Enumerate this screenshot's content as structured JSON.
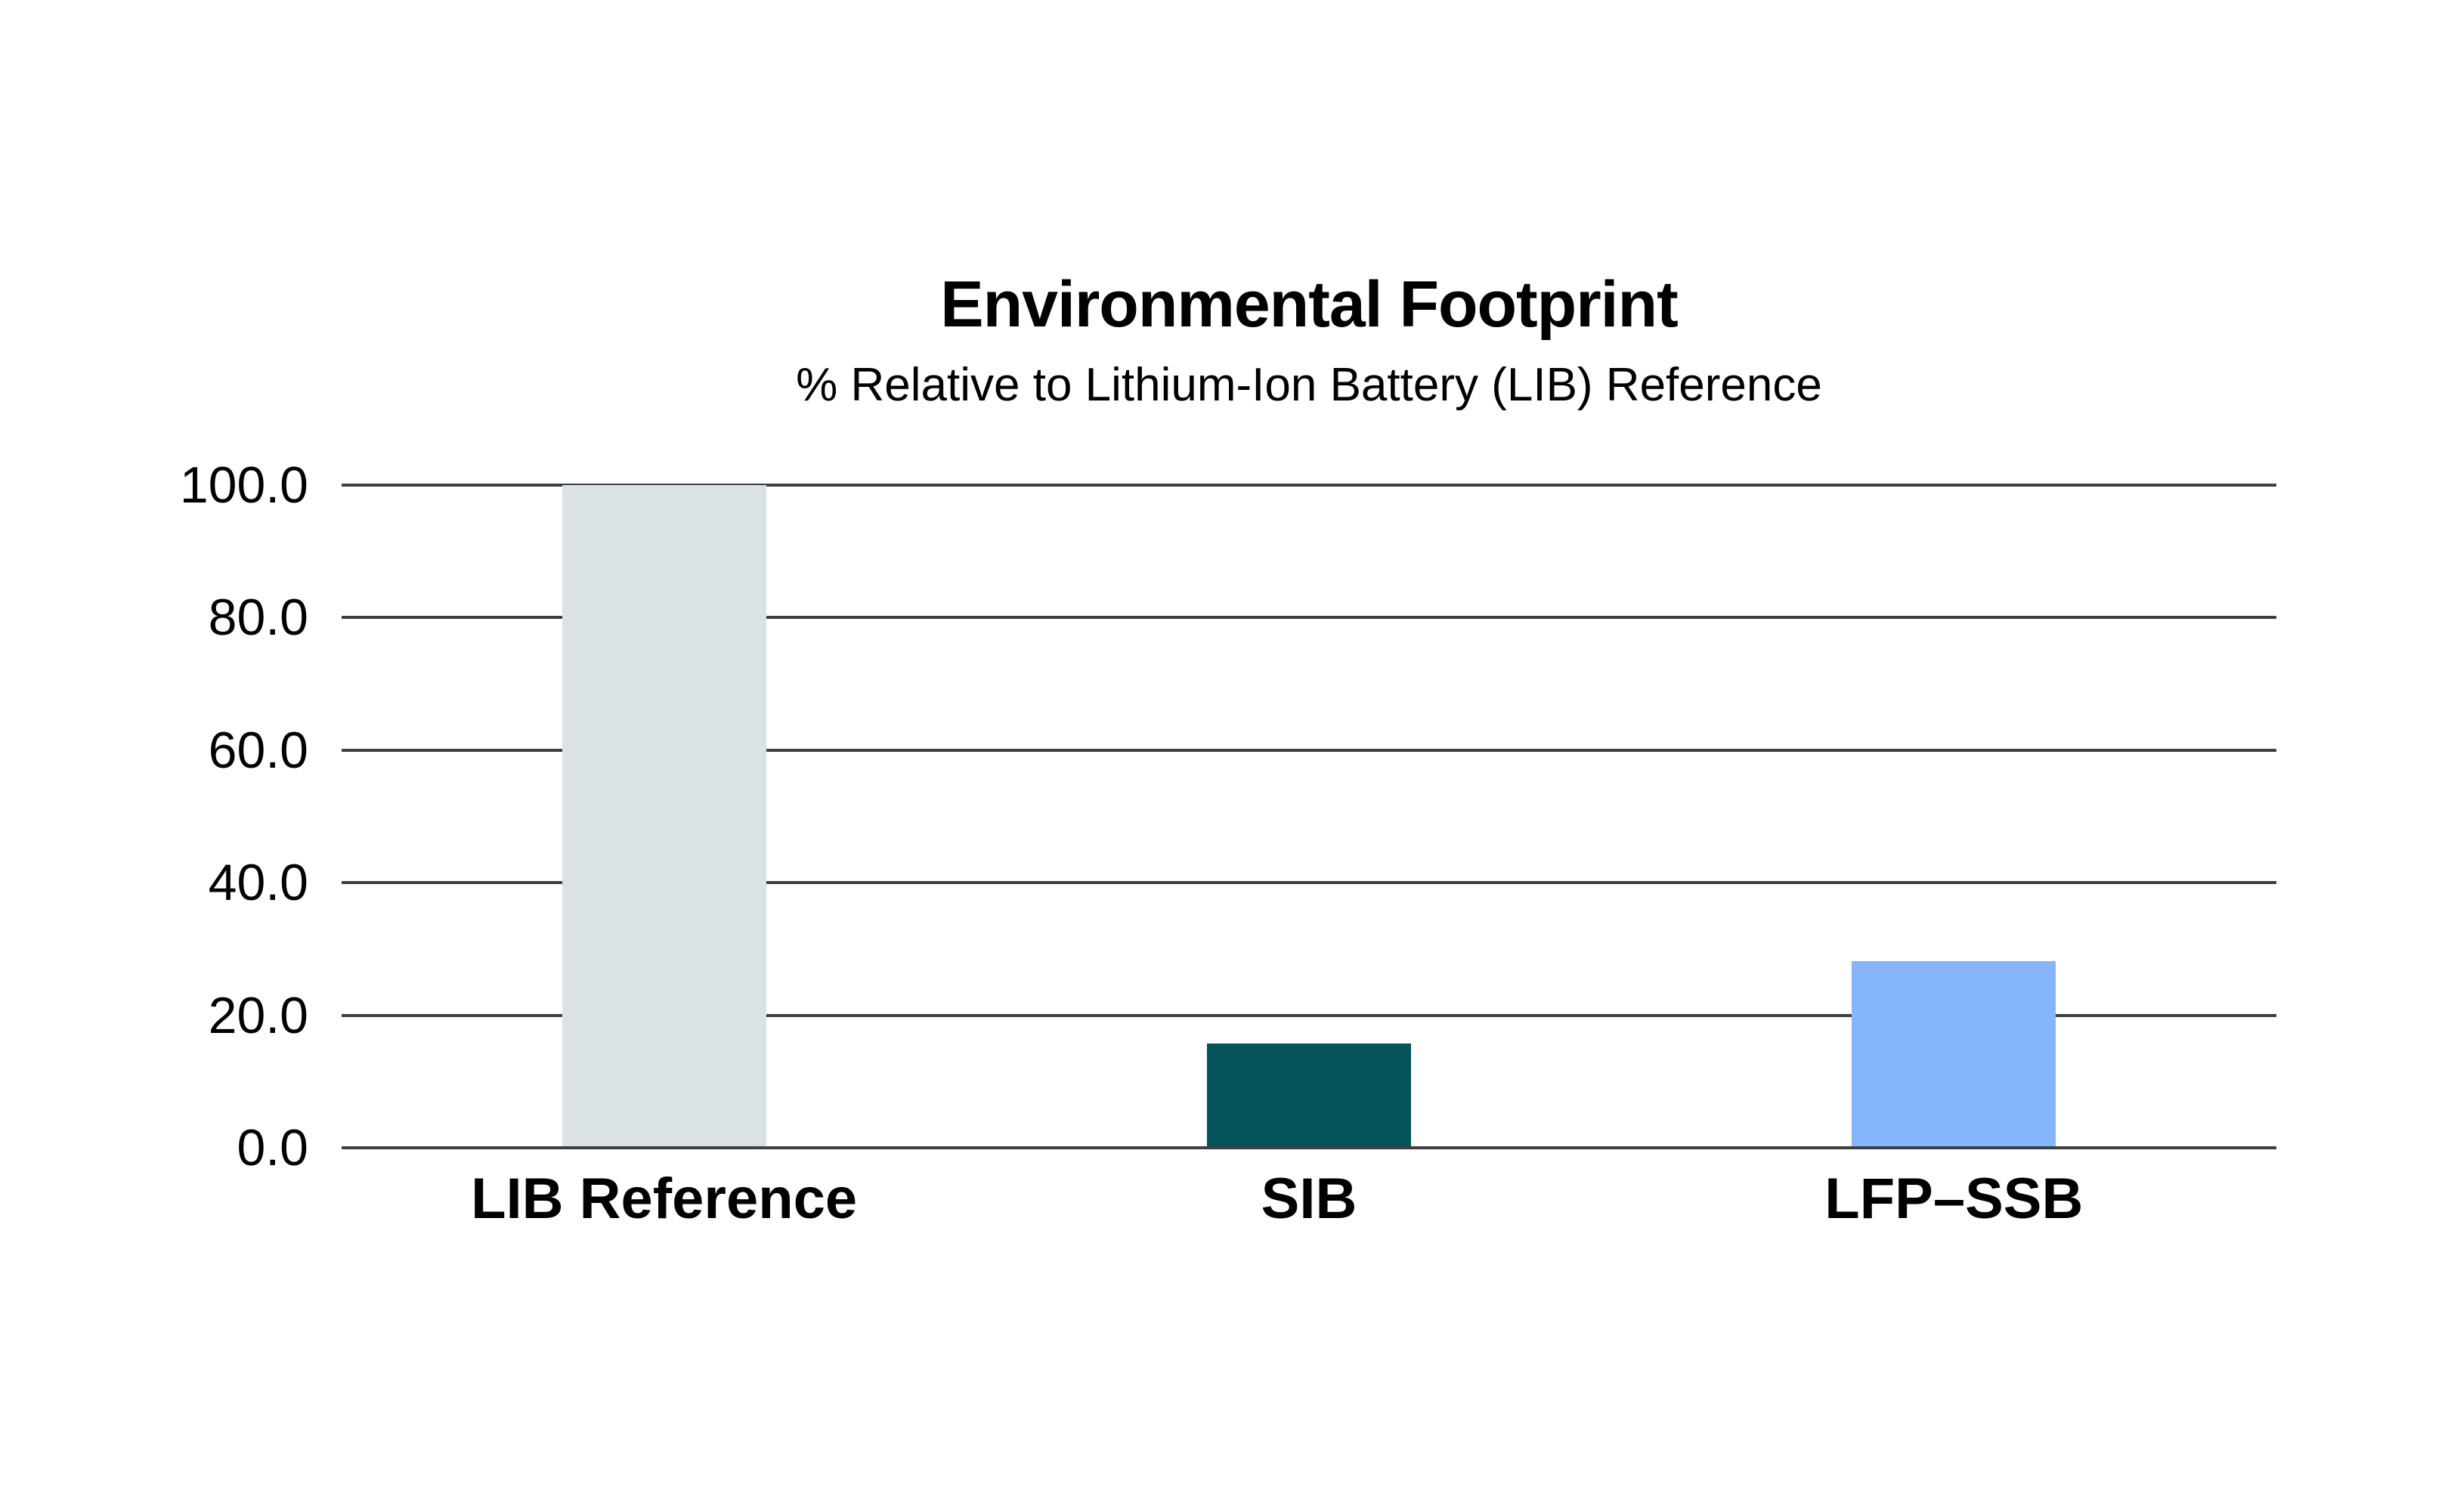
{
  "chart_data": {
    "type": "bar",
    "title": "Environmental Footprint",
    "subtitle": "% Relative to Lithium-Ion Battery (LIB) Reference",
    "categories": [
      "LIB Reference",
      "SIB",
      "LFP–SSB"
    ],
    "values": [
      100.0,
      15.5,
      28.0
    ],
    "bar_colors": [
      "#dbe2e5",
      "#04535a",
      "#85b5fb"
    ],
    "y_ticks": [
      100.0,
      80.0,
      60.0,
      40.0,
      20.0,
      0.0
    ],
    "y_tick_labels": [
      "100.0",
      "80.0",
      "60.0",
      "40.0",
      "20.0",
      "0.0"
    ],
    "ylim": [
      0,
      100
    ],
    "xlabel": "",
    "ylabel": "",
    "grid": true,
    "gridline_color": "#3f3f3f",
    "background_color": "#ffffff",
    "text_color": "#000000",
    "legend": "none"
  }
}
